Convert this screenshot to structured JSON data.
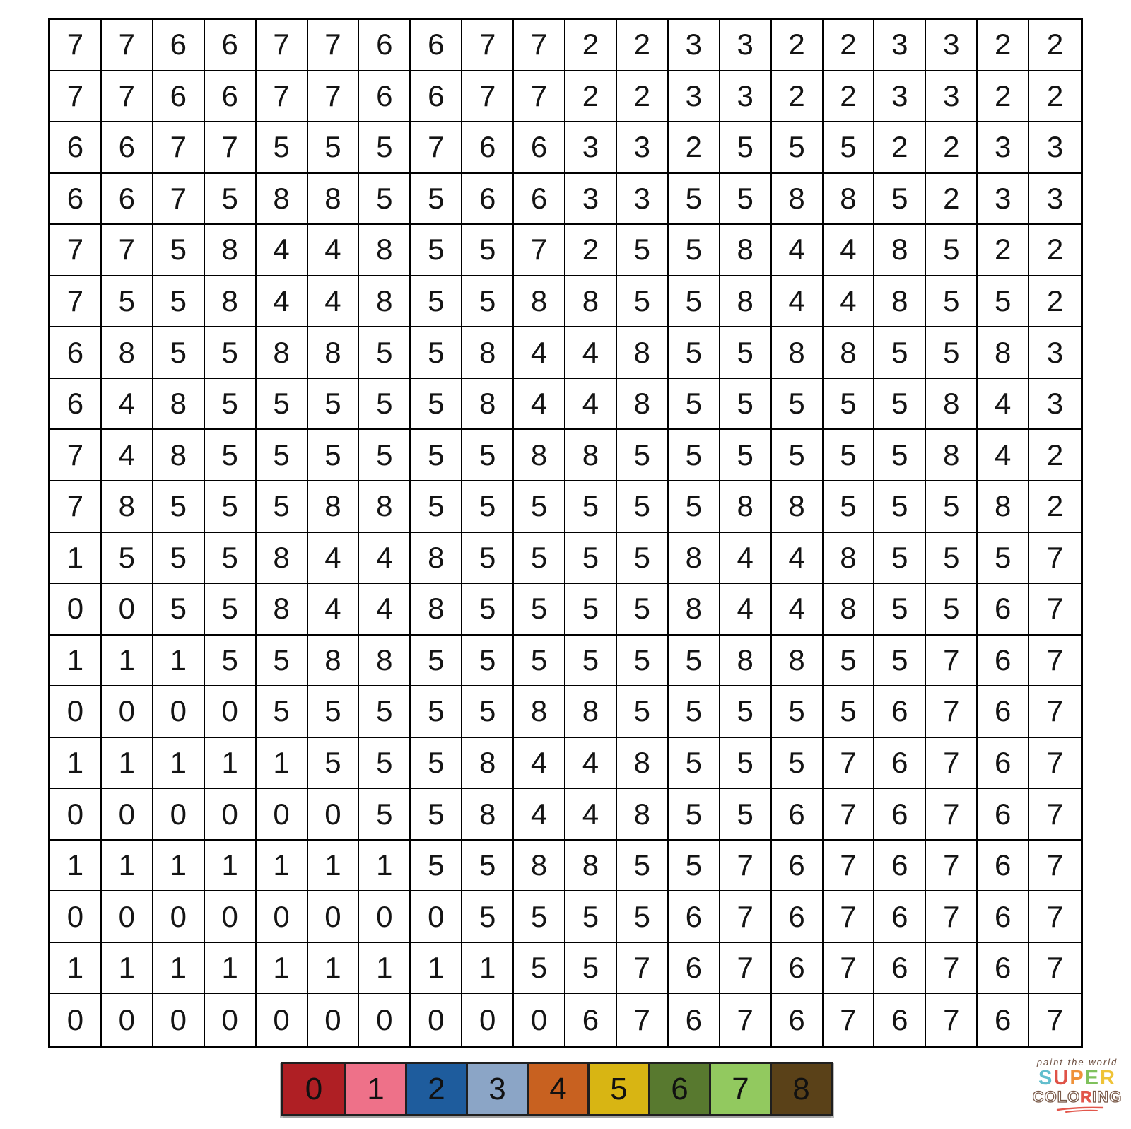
{
  "grid": {
    "rows": [
      [
        7,
        7,
        6,
        6,
        7,
        7,
        6,
        6,
        7,
        7,
        2,
        2,
        3,
        3,
        2,
        2,
        3,
        3,
        2,
        2
      ],
      [
        7,
        7,
        6,
        6,
        7,
        7,
        6,
        6,
        7,
        7,
        2,
        2,
        3,
        3,
        2,
        2,
        3,
        3,
        2,
        2
      ],
      [
        6,
        6,
        7,
        7,
        5,
        5,
        5,
        7,
        6,
        6,
        3,
        3,
        2,
        5,
        5,
        5,
        2,
        2,
        3,
        3
      ],
      [
        6,
        6,
        7,
        5,
        8,
        8,
        5,
        5,
        6,
        6,
        3,
        3,
        5,
        5,
        8,
        8,
        5,
        2,
        3,
        3
      ],
      [
        7,
        7,
        5,
        8,
        4,
        4,
        8,
        5,
        5,
        7,
        2,
        5,
        5,
        8,
        4,
        4,
        8,
        5,
        2,
        2
      ],
      [
        7,
        5,
        5,
        8,
        4,
        4,
        8,
        5,
        5,
        8,
        8,
        5,
        5,
        8,
        4,
        4,
        8,
        5,
        5,
        2
      ],
      [
        6,
        8,
        5,
        5,
        8,
        8,
        5,
        5,
        8,
        4,
        4,
        8,
        5,
        5,
        8,
        8,
        5,
        5,
        8,
        3
      ],
      [
        6,
        4,
        8,
        5,
        5,
        5,
        5,
        5,
        8,
        4,
        4,
        8,
        5,
        5,
        5,
        5,
        5,
        8,
        4,
        3
      ],
      [
        7,
        4,
        8,
        5,
        5,
        5,
        5,
        5,
        5,
        8,
        8,
        5,
        5,
        5,
        5,
        5,
        5,
        8,
        4,
        2
      ],
      [
        7,
        8,
        5,
        5,
        5,
        8,
        8,
        5,
        5,
        5,
        5,
        5,
        5,
        8,
        8,
        5,
        5,
        5,
        8,
        2
      ],
      [
        1,
        5,
        5,
        5,
        8,
        4,
        4,
        8,
        5,
        5,
        5,
        5,
        8,
        4,
        4,
        8,
        5,
        5,
        5,
        7
      ],
      [
        0,
        0,
        5,
        5,
        8,
        4,
        4,
        8,
        5,
        5,
        5,
        5,
        8,
        4,
        4,
        8,
        5,
        5,
        6,
        7
      ],
      [
        1,
        1,
        1,
        5,
        5,
        8,
        8,
        5,
        5,
        5,
        5,
        5,
        5,
        8,
        8,
        5,
        5,
        7,
        6,
        7
      ],
      [
        0,
        0,
        0,
        0,
        5,
        5,
        5,
        5,
        5,
        8,
        8,
        5,
        5,
        5,
        5,
        5,
        6,
        7,
        6,
        7
      ],
      [
        1,
        1,
        1,
        1,
        1,
        5,
        5,
        5,
        8,
        4,
        4,
        8,
        5,
        5,
        5,
        7,
        6,
        7,
        6,
        7
      ],
      [
        0,
        0,
        0,
        0,
        0,
        0,
        5,
        5,
        8,
        4,
        4,
        8,
        5,
        5,
        6,
        7,
        6,
        7,
        6,
        7
      ],
      [
        1,
        1,
        1,
        1,
        1,
        1,
        1,
        5,
        5,
        8,
        8,
        5,
        5,
        7,
        6,
        7,
        6,
        7,
        6,
        7
      ],
      [
        0,
        0,
        0,
        0,
        0,
        0,
        0,
        0,
        5,
        5,
        5,
        5,
        6,
        7,
        6,
        7,
        6,
        7,
        6,
        7
      ],
      [
        1,
        1,
        1,
        1,
        1,
        1,
        1,
        1,
        1,
        5,
        5,
        7,
        6,
        7,
        6,
        7,
        6,
        7,
        6,
        7
      ],
      [
        0,
        0,
        0,
        0,
        0,
        0,
        0,
        0,
        0,
        0,
        6,
        7,
        6,
        7,
        6,
        7,
        6,
        7,
        6,
        7
      ]
    ]
  },
  "legend": {
    "entries": [
      {
        "number": "0",
        "color": "#AF1F24"
      },
      {
        "number": "1",
        "color": "#EE7189"
      },
      {
        "number": "2",
        "color": "#1E5C9D"
      },
      {
        "number": "3",
        "color": "#8BA5C6"
      },
      {
        "number": "4",
        "color": "#C86120"
      },
      {
        "number": "5",
        "color": "#D8B513"
      },
      {
        "number": "6",
        "color": "#58792F"
      },
      {
        "number": "7",
        "color": "#92C95F"
      },
      {
        "number": "8",
        "color": "#5A4118"
      }
    ]
  },
  "logo": {
    "tagline": "paint the world",
    "super_text": "SUPER",
    "super_colors": [
      "#62BECD",
      "#DF5348",
      "#EF9139",
      "#7FC15C",
      "#EFC337"
    ],
    "coloring_text": "COLORING",
    "coloring_red_index": 4,
    "scribble_color": "#E2564B"
  }
}
